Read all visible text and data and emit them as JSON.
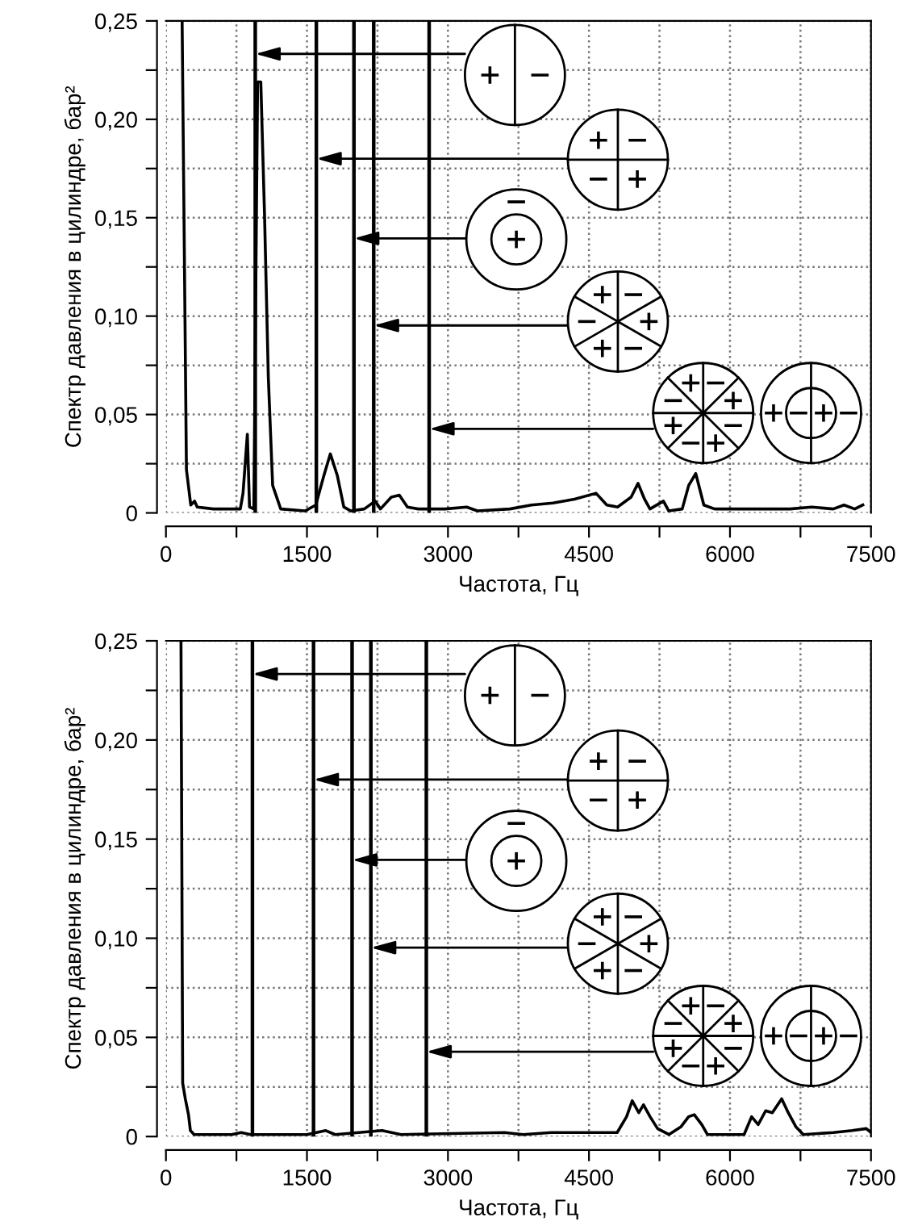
{
  "chart_data": [
    {
      "type": "line",
      "xlabel": "Частота, Гц",
      "ylabel": "Спектр давления в цилиндре, бар²",
      "x": [
        172,
        218,
        264,
        304,
        333,
        505,
        791,
        820,
        866,
        889,
        935,
        975,
        1009,
        1049,
        1089,
        1135,
        1221,
        1479,
        1594,
        1680,
        1749,
        1823,
        1892,
        1967,
        2110,
        2225,
        2282,
        2397,
        2483,
        2569,
        2683,
        2970,
        3199,
        3314,
        3658,
        3887,
        4117,
        4346,
        4575,
        4690,
        4804,
        4948,
        5022,
        5091,
        5149,
        5292,
        5349,
        5492,
        5561,
        5636,
        5722,
        5836,
        6066,
        6639,
        6869,
        7098,
        7213,
        7327,
        7413
      ],
      "series": [
        {
          "color": "#000000",
          "values": [
            0.25,
            0.022,
            0.004,
            0.006,
            0.003,
            0.002,
            0.002,
            0.01,
            0.04,
            0.003,
            0.002,
            0.219,
            0.219,
            0.151,
            0.069,
            0.014,
            0.002,
            0.001,
            0.004,
            0.019,
            0.03,
            0.019,
            0.003,
            0.001,
            0.002,
            0.006,
            0.002,
            0.008,
            0.009,
            0.003,
            0.002,
            0.002,
            0.003,
            0.001,
            0.002,
            0.004,
            0.005,
            0.007,
            0.01,
            0.004,
            0.003,
            0.008,
            0.015,
            0.007,
            0.002,
            0.006,
            0.001,
            0.002,
            0.014,
            0.02,
            0.004,
            0.002,
            0.002,
            0.002,
            0.003,
            0.002,
            0.004,
            0.002,
            0.004
          ]
        }
      ],
      "xlim": [
        0,
        7500
      ],
      "ylim": [
        0,
        0.25
      ],
      "xticks": [
        0,
        {
          "value": 750,
          "label": null
        },
        1500,
        {
          "value": 2250,
          "label": null
        },
        3000,
        {
          "value": 3750,
          "label": null
        },
        4500,
        {
          "value": 5250,
          "label": null
        },
        6000,
        {
          "value": 6750,
          "label": null
        },
        7500
      ],
      "yticks": [
        0,
        {
          "value": 0.025,
          "label": null
        },
        {
          "value": 0.05,
          "label": "0,05"
        },
        {
          "value": 0.075,
          "label": null
        },
        {
          "value": 0.1,
          "label": "0,10"
        },
        {
          "value": 0.125,
          "label": null
        },
        {
          "value": 0.15,
          "label": "0,15"
        },
        {
          "value": 0.175,
          "label": null
        },
        {
          "value": 0.2,
          "label": "0,20"
        },
        {
          "value": 0.225,
          "label": null
        },
        {
          "value": 0.25,
          "label": "0,25"
        }
      ],
      "grid": true,
      "ref_lines": [
        {
          "axis": "x",
          "value": 950,
          "color": "#000000"
        },
        {
          "axis": "x",
          "value": 1600,
          "color": "#000000"
        },
        {
          "axis": "x",
          "value": 2000,
          "color": "#000000"
        },
        {
          "axis": "x",
          "value": 2210,
          "color": "#000000"
        },
        {
          "axis": "x",
          "value": 2800,
          "color": "#000000"
        }
      ]
    },
    {
      "type": "line",
      "xlabel": "Частота, Гц",
      "ylabel": "Спектр давления в цилиндре, бар²",
      "x": [
        160,
        178,
        206,
        240,
        260,
        300,
        700,
        800,
        900,
        1500,
        1700,
        1800,
        2300,
        2400,
        2500,
        3600,
        3800,
        4100,
        4500,
        4800,
        4900,
        4960,
        5030,
        5080,
        5150,
        5230,
        5350,
        5480,
        5560,
        5620,
        5700,
        5760,
        5950,
        6150,
        6230,
        6300,
        6380,
        6450,
        6550,
        6620,
        6700,
        6780,
        7100,
        7300,
        7450,
        7500
      ],
      "series": [
        {
          "color": "#000000",
          "values": [
            0.25,
            0.027,
            0.019,
            0.011,
            0.003,
            0.001,
            0.001,
            0.002,
            0.001,
            0.001,
            0.003,
            0.001,
            0.003,
            0.002,
            0.001,
            0.002,
            0.001,
            0.002,
            0.002,
            0.002,
            0.01,
            0.018,
            0.012,
            0.016,
            0.01,
            0.004,
            0.001,
            0.005,
            0.01,
            0.011,
            0.006,
            0.001,
            0.001,
            0.001,
            0.01,
            0.006,
            0.013,
            0.012,
            0.019,
            0.012,
            0.005,
            0.001,
            0.002,
            0.003,
            0.004,
            0.002
          ]
        }
      ],
      "xlim": [
        0,
        7500
      ],
      "ylim": [
        0,
        0.25
      ],
      "xticks": [
        0,
        {
          "value": 750,
          "label": null
        },
        1500,
        {
          "value": 2250,
          "label": null
        },
        3000,
        {
          "value": 3750,
          "label": null
        },
        4500,
        {
          "value": 5250,
          "label": null
        },
        6000,
        {
          "value": 6750,
          "label": null
        },
        7500
      ],
      "yticks": [
        0,
        {
          "value": 0.025,
          "label": null
        },
        {
          "value": 0.05,
          "label": "0,05"
        },
        {
          "value": 0.075,
          "label": null
        },
        {
          "value": 0.1,
          "label": "0,10"
        },
        {
          "value": 0.125,
          "label": null
        },
        {
          "value": 0.15,
          "label": "0,15"
        },
        {
          "value": 0.175,
          "label": null
        },
        {
          "value": 0.2,
          "label": "0,20"
        },
        {
          "value": 0.225,
          "label": null
        },
        {
          "value": 0.25,
          "label": "0,25"
        }
      ],
      "grid": true,
      "ref_lines": [
        {
          "axis": "x",
          "value": 920,
          "color": "#000000"
        },
        {
          "axis": "x",
          "value": 1570,
          "color": "#000000"
        },
        {
          "axis": "x",
          "value": 1980,
          "color": "#000000"
        },
        {
          "axis": "x",
          "value": 2180,
          "color": "#000000"
        },
        {
          "axis": "x",
          "value": 2770,
          "color": "#000000"
        }
      ]
    }
  ]
}
